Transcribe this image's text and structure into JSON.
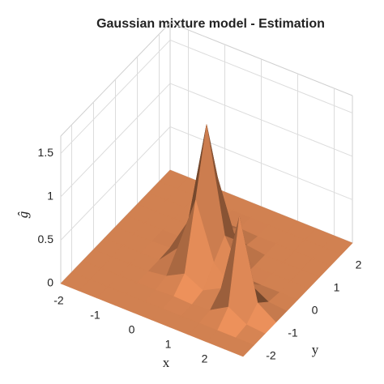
{
  "chart_data": {
    "type": "surface",
    "title": "Gaussian mixture model - Estimation",
    "xlabel": "x",
    "ylabel": "y",
    "zlabel": "ĝ",
    "x": [
      -2.5,
      -2,
      -1.5,
      -1,
      -0.5,
      0,
      0.5,
      1,
      1.5,
      2,
      2.5
    ],
    "y": [
      -2.5,
      -2,
      -1.5,
      -1,
      -0.5,
      0,
      0.5,
      1,
      1.5,
      2,
      2.5
    ],
    "z": [
      [
        0,
        0,
        0,
        0,
        0,
        0,
        0,
        0,
        0,
        0,
        0
      ],
      [
        0,
        0,
        0,
        0,
        0,
        0,
        0,
        0,
        0,
        0,
        0
      ],
      [
        0,
        0,
        0,
        0,
        0,
        0.01,
        0,
        0.02,
        0.14,
        0.02,
        0
      ],
      [
        0,
        0,
        0,
        0,
        0.03,
        0.14,
        0.03,
        0.14,
        1.05,
        0.14,
        0
      ],
      [
        0,
        0,
        0,
        0,
        0.22,
        0.86,
        0.22,
        0.02,
        0.14,
        0.02,
        0
      ],
      [
        0,
        0,
        0,
        0.01,
        0.4,
        1.6,
        0.4,
        0.01,
        0,
        0,
        0
      ],
      [
        0,
        0,
        0,
        0,
        0.22,
        0.86,
        0.22,
        0,
        0,
        0,
        0
      ],
      [
        0,
        0,
        0,
        0,
        0.03,
        0.14,
        0.03,
        0,
        0,
        0,
        0
      ],
      [
        0,
        0,
        0,
        0,
        0,
        0.01,
        0,
        0,
        0,
        0,
        0
      ],
      [
        0,
        0,
        0,
        0,
        0,
        0,
        0,
        0,
        0,
        0,
        0
      ],
      [
        0,
        0,
        0,
        0,
        0,
        0,
        0,
        0,
        0,
        0,
        0
      ]
    ],
    "xlim": [
      -2.5,
      2.5
    ],
    "ylim": [
      -2.5,
      2.5
    ],
    "zlim": [
      0,
      1.7
    ],
    "xticks": [
      -2,
      -1,
      0,
      1,
      2
    ],
    "yticks": [
      -2,
      -1,
      0,
      1,
      2
    ],
    "zticks": [
      0,
      0.5,
      1,
      1.5
    ],
    "color": "#e48c58",
    "grid": true
  }
}
